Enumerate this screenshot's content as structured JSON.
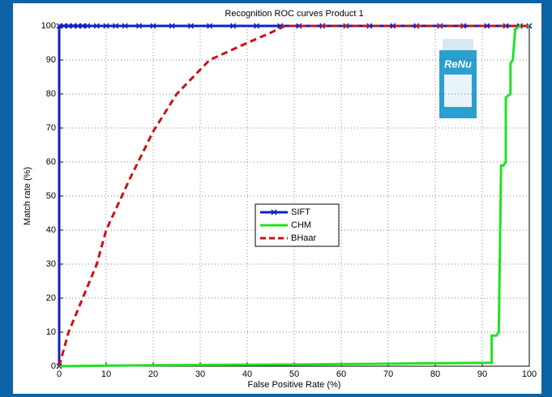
{
  "chart_data": {
    "type": "line",
    "title": "Recognition ROC curves Product 1",
    "x_label": "False Positive Rate (%)",
    "y_label": "Match rate (%)",
    "annotations": [
      "ReNu"
    ],
    "xlim": [
      0,
      100
    ],
    "ylim": [
      0,
      100
    ],
    "xticks": [
      0,
      10,
      20,
      30,
      40,
      50,
      60,
      70,
      80,
      90,
      100
    ],
    "yticks": [
      0,
      10,
      20,
      30,
      40,
      50,
      60,
      70,
      80,
      90,
      100
    ],
    "grid": true,
    "legend": "center",
    "series": [
      {
        "name": "SIFT",
        "color": "#1020c0",
        "style": "solid",
        "marker": "x",
        "x": [
          0,
          0,
          1,
          2,
          3,
          4,
          5,
          6,
          8,
          10,
          12,
          14,
          17,
          20,
          24,
          28,
          32,
          37,
          42,
          47,
          51,
          56,
          61,
          66,
          71,
          76,
          81,
          86,
          91,
          95,
          98,
          100
        ],
        "values": [
          0,
          100,
          100,
          100,
          100,
          100,
          100,
          100,
          100,
          100,
          100,
          100,
          100,
          100,
          100,
          100,
          100,
          100,
          100,
          100,
          100,
          100,
          100,
          100,
          100,
          100,
          100,
          100,
          100,
          100,
          100,
          100
        ]
      },
      {
        "name": "CHM",
        "color": "#22e022",
        "style": "solid",
        "x": [
          0,
          20,
          50,
          92,
          92,
          93,
          93.5,
          94,
          94.5,
          95,
          95,
          96,
          96,
          96.5,
          97,
          98,
          100
        ],
        "values": [
          0,
          0.3,
          0.5,
          1,
          9,
          9,
          10,
          59,
          59,
          60,
          79,
          80,
          89,
          90,
          99,
          100,
          100
        ]
      },
      {
        "name": "BHaar",
        "color": "#cc1111",
        "style": "dashed",
        "x": [
          0,
          2,
          5,
          8,
          10,
          15,
          20,
          25,
          32,
          40,
          45,
          48,
          100
        ],
        "values": [
          0,
          10,
          20,
          30,
          40,
          55,
          69,
          80,
          90,
          95,
          98,
          100,
          100
        ]
      }
    ]
  }
}
